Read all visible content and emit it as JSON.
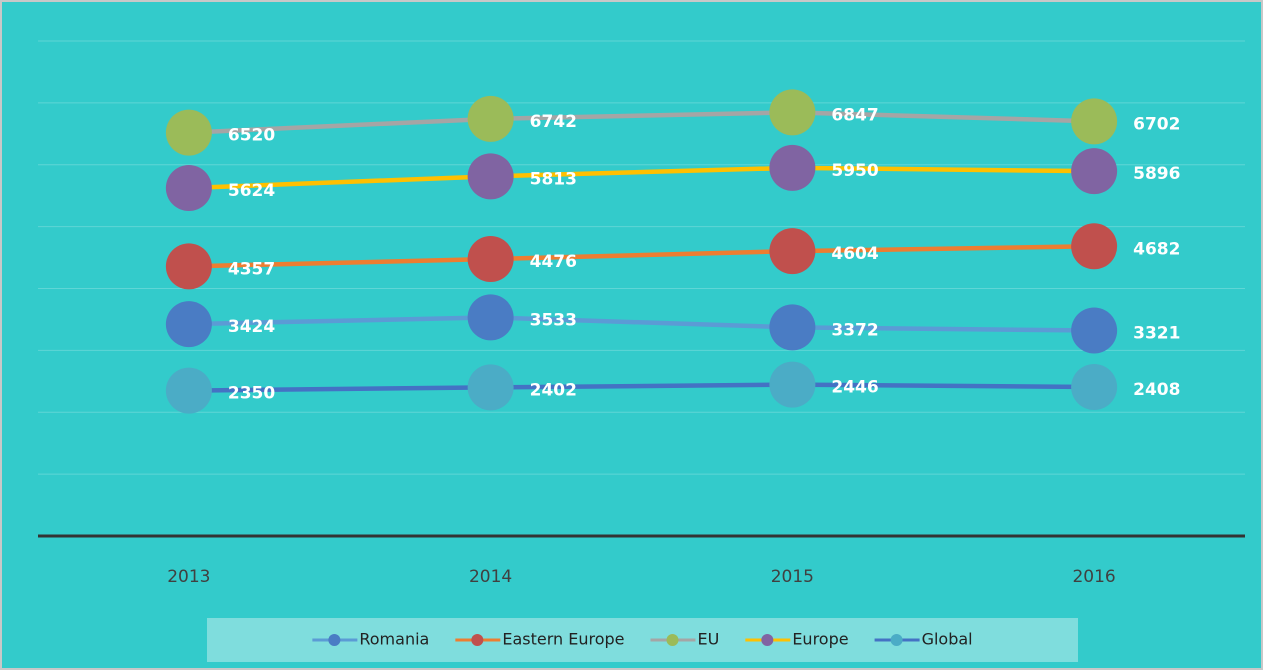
{
  "chart_data": {
    "type": "line",
    "categories": [
      "2013",
      "2014",
      "2015",
      "2016"
    ],
    "series": [
      {
        "name": "Romania",
        "color": "#5b9bd5",
        "marker_color": "#4a7cc4",
        "values": [
          3424,
          3533,
          3372,
          3321
        ]
      },
      {
        "name": "Eastern Europe",
        "color": "#ed7d31",
        "marker_color": "#c0504d",
        "values": [
          4357,
          4476,
          4604,
          4682
        ]
      },
      {
        "name": "EU",
        "color": "#a5a5a5",
        "marker_color": "#9bbb59",
        "values": [
          6520,
          6742,
          6847,
          6702
        ]
      },
      {
        "name": "Europe",
        "color": "#ffc000",
        "marker_color": "#8064a2",
        "values": [
          5624,
          5813,
          5950,
          5896
        ]
      },
      {
        "name": "Global",
        "color": "#4472c4",
        "marker_color": "#4bacc6",
        "values": [
          2350,
          2402,
          2446,
          2408
        ]
      }
    ],
    "ylim": [
      0,
      8000
    ],
    "yticks": [
      0,
      1000,
      2000,
      3000,
      4000,
      5000,
      6000,
      7000,
      8000
    ],
    "grid": true,
    "legend": "bottom"
  }
}
